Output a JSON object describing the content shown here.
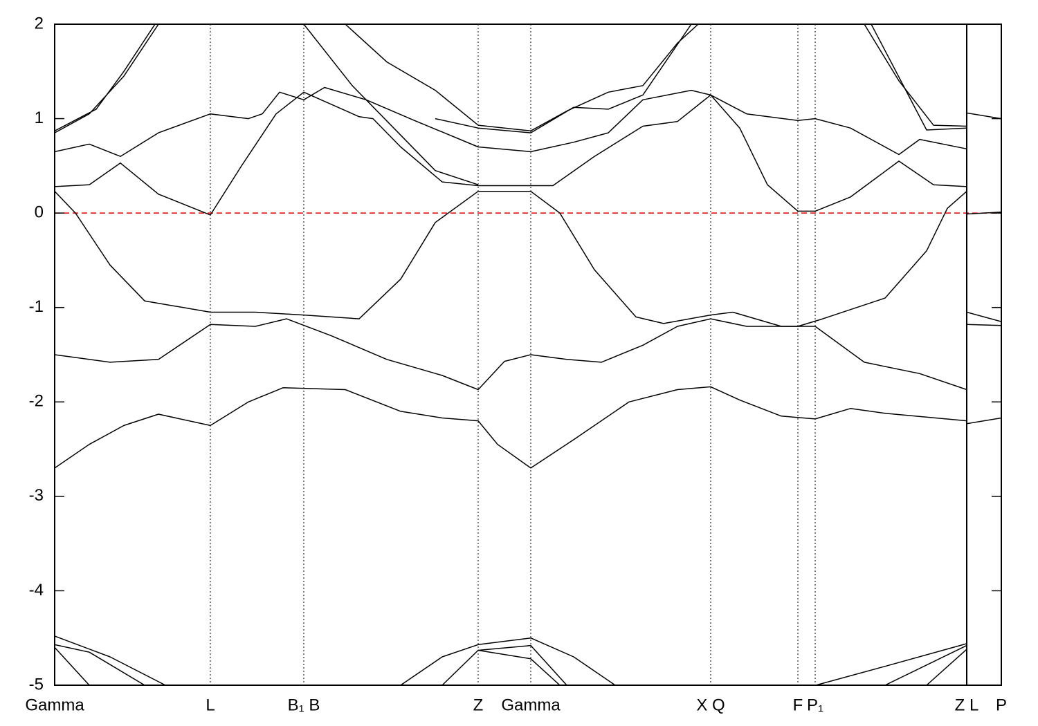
{
  "chart_data": {
    "type": "line",
    "xlim": [
      0,
      13.68
    ],
    "ylim": [
      -5,
      2
    ],
    "yticks": [
      -5,
      -4,
      -3,
      -2,
      -1,
      0,
      1,
      2
    ],
    "xticks": [
      {
        "value": 0,
        "label": "Gamma"
      },
      {
        "value": 2.25,
        "label": "L"
      },
      {
        "value": 3.6,
        "label": "B₁ B"
      },
      {
        "value": 6.12,
        "label": "Z"
      },
      {
        "value": 6.88,
        "label": "Gamma"
      },
      {
        "value": 9.48,
        "label": "X Q"
      },
      {
        "value": 10.74,
        "label": "F"
      },
      {
        "value": 10.99,
        "label": "P₁"
      },
      {
        "value": 13.18,
        "label": "Z L"
      },
      {
        "value": 13.68,
        "label": "P"
      }
    ],
    "grid": true,
    "panel_breaks": [
      13.18
    ],
    "hline": {
      "value": 0,
      "color": "#e00000",
      "dashed": true
    },
    "series": [
      {
        "color": "#000000",
        "x": [
          0,
          0.5,
          1.0,
          1.5,
          2.25,
          2.8,
          3.3,
          4.2,
          5.0,
          5.6,
          6.12,
          6.4,
          6.88,
          7.5,
          8.3,
          9.0,
          9.48,
          9.9,
          10.5,
          10.99,
          11.5,
          12.0,
          13.18,
          null,
          13.18,
          13.68
        ],
        "values": [
          -2.7,
          -2.45,
          -2.25,
          -2.13,
          -2.25,
          -2.0,
          -1.85,
          -1.87,
          -2.1,
          -2.17,
          -2.2,
          -2.45,
          -2.7,
          -2.4,
          -2.0,
          -1.87,
          -1.84,
          -1.98,
          -2.15,
          -2.18,
          -2.07,
          -2.12,
          -2.2,
          null,
          -2.23,
          -2.17
        ]
      },
      {
        "color": "#000000",
        "x": [
          0,
          0.8,
          1.5,
          2.25,
          2.9,
          3.35,
          4.0,
          4.8,
          5.6,
          6.12,
          6.5,
          6.88,
          7.4,
          7.9,
          8.5,
          9.0,
          9.48,
          10.0,
          10.99,
          11.7,
          12.5,
          13.18,
          null,
          13.18,
          13.68
        ],
        "values": [
          -1.5,
          -1.58,
          -1.55,
          -1.18,
          -1.2,
          -1.12,
          -1.3,
          -1.55,
          -1.72,
          -1.87,
          -1.57,
          -1.5,
          -1.55,
          -1.58,
          -1.4,
          -1.2,
          -1.12,
          -1.2,
          -1.2,
          -1.58,
          -1.7,
          -1.87,
          null,
          -1.18,
          -1.19
        ]
      },
      {
        "color": "#000000",
        "x": [
          0,
          0.3,
          0.8,
          1.3,
          2.25,
          2.9,
          3.6,
          4.4,
          5.0,
          5.5,
          6.12,
          6.88,
          7.3,
          7.8,
          8.4,
          8.8,
          9.48,
          9.8,
          10.5,
          10.74,
          11.1,
          12.0,
          12.6,
          12.9,
          13.18,
          null,
          13.18,
          13.68
        ],
        "values": [
          0.23,
          0.0,
          -0.55,
          -0.93,
          -1.05,
          -1.05,
          -1.08,
          -1.12,
          -0.7,
          -0.1,
          0.23,
          0.23,
          0.0,
          -0.6,
          -1.1,
          -1.17,
          -1.08,
          -1.05,
          -1.2,
          -1.2,
          -1.12,
          -0.9,
          -0.4,
          0.05,
          0.23,
          null,
          -1.05,
          -1.15
        ]
      },
      {
        "color": "#000000",
        "x": [
          0,
          0.5,
          0.95,
          1.5,
          2.25,
          2.7,
          3.2,
          3.6,
          4.4,
          4.6,
          5.0,
          5.6,
          6.12,
          6.88,
          7.2,
          7.8,
          8.5,
          9.0,
          9.48,
          9.9,
          10.3,
          10.74,
          10.99,
          11.5,
          12.2,
          12.7,
          13.18,
          null,
          13.18,
          13.68
        ],
        "values": [
          0.28,
          0.3,
          0.53,
          0.2,
          -0.02,
          0.5,
          1.05,
          1.28,
          1.02,
          1.0,
          0.7,
          0.33,
          0.29,
          0.29,
          0.29,
          0.6,
          0.92,
          0.97,
          1.25,
          0.9,
          0.3,
          0.02,
          0.02,
          0.17,
          0.55,
          0.3,
          0.28,
          null,
          -0.01,
          0.01
        ]
      },
      {
        "color": "#000000",
        "x": [
          0,
          0.5,
          0.95,
          1.5,
          2.25,
          2.8,
          3.0,
          3.25,
          3.6,
          3.9,
          4.5,
          5.2,
          6.12,
          6.88,
          7.5,
          8.0,
          8.5,
          9.2,
          9.48,
          10.0,
          10.74,
          10.99,
          11.5,
          12.2,
          12.5,
          13.18,
          null,
          13.18,
          13.68
        ],
        "values": [
          0.65,
          0.73,
          0.6,
          0.85,
          1.05,
          1.0,
          1.05,
          1.28,
          1.2,
          1.33,
          1.2,
          0.98,
          0.7,
          0.65,
          0.75,
          0.85,
          1.2,
          1.3,
          1.25,
          1.05,
          0.98,
          1.0,
          0.9,
          0.62,
          0.78,
          0.68,
          null,
          1.06,
          1.0
        ]
      },
      {
        "color": "#000000",
        "x": [
          0,
          0.5,
          1.0,
          1.5,
          null,
          3.6,
          4.3,
          4.9,
          5.5,
          6.12
        ],
        "values": [
          0.85,
          1.05,
          1.45,
          2.0,
          null,
          2.0,
          1.35,
          0.9,
          0.45,
          0.3
        ]
      },
      {
        "color": "#000000",
        "x": [
          0,
          0.6,
          1.0,
          1.45,
          null,
          11.7,
          12.2,
          12.7,
          13.18
        ],
        "values": [
          0.87,
          1.1,
          1.5,
          2.0,
          null,
          2.0,
          1.4,
          0.93,
          0.92
        ]
      },
      {
        "color": "#000000",
        "x": [
          4.2,
          4.8,
          5.5,
          6.12,
          6.88,
          7.4,
          8.0,
          8.5,
          9.0,
          9.3,
          null,
          11.8,
          12.3,
          12.6,
          13.18
        ],
        "values": [
          2.0,
          1.6,
          1.3,
          0.93,
          0.87,
          1.08,
          1.28,
          1.35,
          1.8,
          2.0,
          null,
          2.0,
          1.3,
          0.88,
          0.9
        ]
      },
      {
        "color": "#000000",
        "x": [
          5.5,
          6.12,
          6.88,
          7.5,
          8.0,
          8.5,
          9.2
        ],
        "values": [
          1.0,
          0.9,
          0.85,
          1.12,
          1.1,
          1.25,
          2.0
        ]
      },
      {
        "color": "#000000",
        "x": [
          0,
          0.8,
          1.6,
          null,
          5.0,
          5.6,
          6.12,
          6.88,
          7.5,
          8.1,
          null,
          11.0,
          12.0,
          13.18
        ],
        "values": [
          -4.48,
          -4.7,
          -5.0,
          null,
          -5.0,
          -4.7,
          -4.57,
          -4.5,
          -4.7,
          -5.0,
          null,
          -5.0,
          -4.8,
          -4.56
        ]
      },
      {
        "color": "#000000",
        "x": [
          0,
          0.5,
          1.3,
          null,
          5.6,
          6.12,
          6.88,
          7.4,
          null,
          12.0,
          13.18
        ],
        "values": [
          -4.57,
          -4.65,
          -5.0,
          null,
          -5.0,
          -4.63,
          -4.58,
          -5.0,
          null,
          -5.0,
          -4.58
        ]
      },
      {
        "color": "#000000",
        "x": [
          0,
          0.5,
          null,
          6.12,
          6.88,
          7.3,
          null,
          12.6,
          13.18
        ],
        "values": [
          -4.6,
          -5.0,
          null,
          -4.63,
          -4.72,
          -5.0,
          null,
          -5.0,
          -4.62
        ]
      }
    ]
  }
}
